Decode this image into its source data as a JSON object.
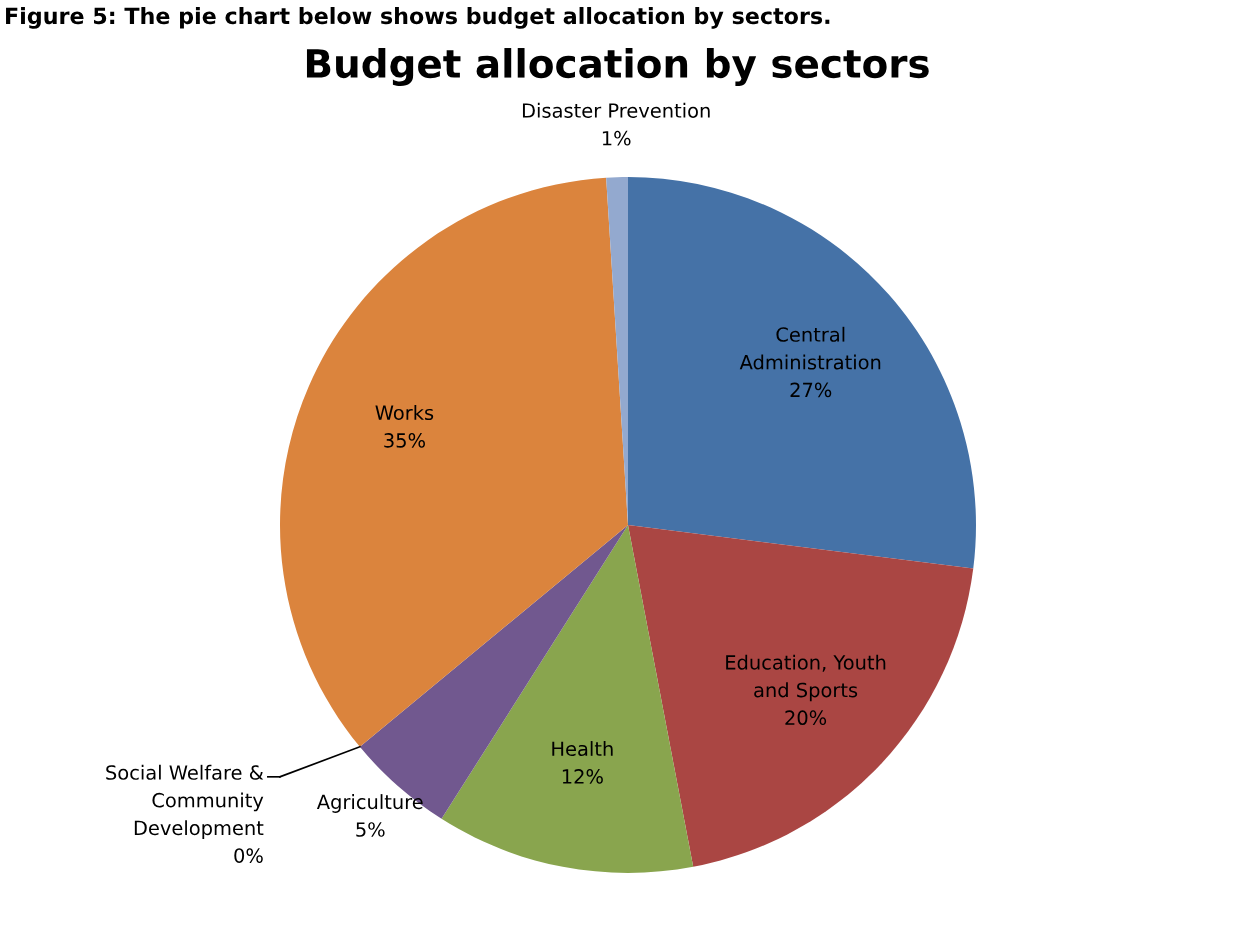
{
  "chart_data": {
    "type": "pie",
    "title": "Budget allocation by sectors",
    "annotations": [
      "Figure 5: The pie chart below shows budget allocation by sectors."
    ],
    "categories": [
      "Central Administration",
      "Education, Youth and Sports",
      "Health",
      "Agriculture",
      "Social Welfare & Community Development",
      "Works",
      "Disaster Prevention"
    ],
    "values": [
      27,
      20,
      12,
      5,
      0,
      35,
      1
    ],
    "colors": [
      "#4572a7",
      "#aa4643",
      "#89a54e",
      "#71588f",
      "#4198af",
      "#db843d",
      "#93a9cf"
    ],
    "value_labels": [
      "27%",
      "20%",
      "12%",
      "5%",
      "0%",
      "35%",
      "1%"
    ]
  }
}
